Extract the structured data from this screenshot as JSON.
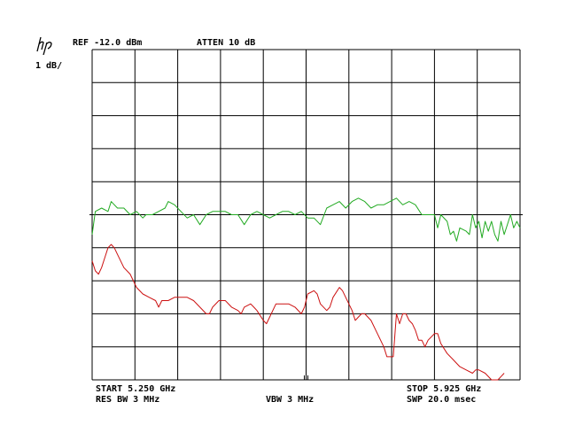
{
  "header": {
    "logo": "hp",
    "ref_level": "REF -12.0 dBm",
    "attenuation": "ATTEN 10 dB",
    "scale": "1 dB/"
  },
  "footer": {
    "start_freq": "START 5.250 GHz",
    "res_bw": "RES BW 3 MHz",
    "vbw": "VBW 3 MHz",
    "stop_freq": "STOP 5.925 GHz",
    "sweep_time": "SWP 20.0 msec"
  },
  "colors": {
    "grid": "#000000",
    "trace_green": "#22aa22",
    "trace_red": "#cc1111"
  },
  "chart_data": {
    "type": "line",
    "x_unit": "GHz",
    "y_unit": "dBm",
    "xlim": [
      5.25,
      5.925
    ],
    "ylim": [
      -22.0,
      -12.0
    ],
    "x_divisions": 10,
    "y_divisions": 10,
    "grid": true,
    "display_line_dbm": -17.0,
    "series": [
      {
        "color": "#22aa22",
        "points": [
          [
            5.25,
            -17.6
          ],
          [
            5.255,
            -16.9
          ],
          [
            5.265,
            -16.8
          ],
          [
            5.275,
            -16.9
          ],
          [
            5.28,
            -16.6
          ],
          [
            5.29,
            -16.8
          ],
          [
            5.3,
            -16.8
          ],
          [
            5.31,
            -17.0
          ],
          [
            5.32,
            -16.9
          ],
          [
            5.33,
            -17.1
          ],
          [
            5.335,
            -17.0
          ],
          [
            5.345,
            -17.0
          ],
          [
            5.355,
            -16.9
          ],
          [
            5.365,
            -16.8
          ],
          [
            5.37,
            -16.6
          ],
          [
            5.38,
            -16.7
          ],
          [
            5.39,
            -16.9
          ],
          [
            5.4,
            -17.1
          ],
          [
            5.41,
            -17.0
          ],
          [
            5.42,
            -17.3
          ],
          [
            5.43,
            -17.0
          ],
          [
            5.44,
            -16.9
          ],
          [
            5.45,
            -16.9
          ],
          [
            5.46,
            -16.9
          ],
          [
            5.47,
            -17.0
          ],
          [
            5.48,
            -17.0
          ],
          [
            5.49,
            -17.3
          ],
          [
            5.5,
            -17.0
          ],
          [
            5.51,
            -16.9
          ],
          [
            5.52,
            -17.0
          ],
          [
            5.53,
            -17.1
          ],
          [
            5.54,
            -17.0
          ],
          [
            5.55,
            -16.9
          ],
          [
            5.56,
            -16.9
          ],
          [
            5.57,
            -17.0
          ],
          [
            5.58,
            -16.9
          ],
          [
            5.59,
            -17.1
          ],
          [
            5.6,
            -17.1
          ],
          [
            5.61,
            -17.3
          ],
          [
            5.62,
            -16.8
          ],
          [
            5.63,
            -16.7
          ],
          [
            5.64,
            -16.6
          ],
          [
            5.65,
            -16.8
          ],
          [
            5.66,
            -16.6
          ],
          [
            5.67,
            -16.5
          ],
          [
            5.68,
            -16.6
          ],
          [
            5.69,
            -16.8
          ],
          [
            5.7,
            -16.7
          ],
          [
            5.71,
            -16.7
          ],
          [
            5.72,
            -16.6
          ],
          [
            5.73,
            -16.5
          ],
          [
            5.74,
            -16.7
          ],
          [
            5.75,
            -16.6
          ],
          [
            5.76,
            -16.7
          ],
          [
            5.77,
            -17.0
          ],
          [
            5.78,
            -17.0
          ],
          [
            5.79,
            -17.0
          ],
          [
            5.795,
            -17.4
          ],
          [
            5.8,
            -17.0
          ],
          [
            5.81,
            -17.2
          ],
          [
            5.815,
            -17.6
          ],
          [
            5.82,
            -17.5
          ],
          [
            5.825,
            -17.8
          ],
          [
            5.83,
            -17.4
          ],
          [
            5.84,
            -17.5
          ],
          [
            5.845,
            -17.6
          ],
          [
            5.85,
            -17.0
          ],
          [
            5.855,
            -17.4
          ],
          [
            5.86,
            -17.2
          ],
          [
            5.865,
            -17.7
          ],
          [
            5.87,
            -17.2
          ],
          [
            5.875,
            -17.5
          ],
          [
            5.88,
            -17.2
          ],
          [
            5.885,
            -17.6
          ],
          [
            5.89,
            -17.8
          ],
          [
            5.895,
            -17.2
          ],
          [
            5.9,
            -17.6
          ],
          [
            5.91,
            -17.0
          ],
          [
            5.915,
            -17.4
          ],
          [
            5.92,
            -17.2
          ],
          [
            5.925,
            -17.4
          ]
        ]
      },
      {
        "color": "#cc1111",
        "points": [
          [
            5.25,
            -18.4
          ],
          [
            5.255,
            -18.7
          ],
          [
            5.26,
            -18.8
          ],
          [
            5.265,
            -18.6
          ],
          [
            5.27,
            -18.3
          ],
          [
            5.275,
            -18.0
          ],
          [
            5.28,
            -17.9
          ],
          [
            5.285,
            -18.0
          ],
          [
            5.29,
            -18.2
          ],
          [
            5.3,
            -18.6
          ],
          [
            5.31,
            -18.8
          ],
          [
            5.32,
            -19.2
          ],
          [
            5.33,
            -19.4
          ],
          [
            5.34,
            -19.5
          ],
          [
            5.35,
            -19.6
          ],
          [
            5.355,
            -19.8
          ],
          [
            5.36,
            -19.6
          ],
          [
            5.37,
            -19.6
          ],
          [
            5.38,
            -19.5
          ],
          [
            5.39,
            -19.5
          ],
          [
            5.4,
            -19.5
          ],
          [
            5.41,
            -19.6
          ],
          [
            5.42,
            -19.8
          ],
          [
            5.43,
            -20.0
          ],
          [
            5.435,
            -20.0
          ],
          [
            5.44,
            -19.8
          ],
          [
            5.45,
            -19.6
          ],
          [
            5.46,
            -19.6
          ],
          [
            5.47,
            -19.8
          ],
          [
            5.48,
            -19.9
          ],
          [
            5.485,
            -20.0
          ],
          [
            5.49,
            -19.8
          ],
          [
            5.5,
            -19.7
          ],
          [
            5.505,
            -19.8
          ],
          [
            5.51,
            -19.9
          ],
          [
            5.52,
            -20.2
          ],
          [
            5.525,
            -20.3
          ],
          [
            5.53,
            -20.1
          ],
          [
            5.54,
            -19.7
          ],
          [
            5.55,
            -19.7
          ],
          [
            5.56,
            -19.7
          ],
          [
            5.57,
            -19.8
          ],
          [
            5.58,
            -20.0
          ],
          [
            5.585,
            -19.8
          ],
          [
            5.59,
            -19.4
          ],
          [
            5.6,
            -19.3
          ],
          [
            5.605,
            -19.4
          ],
          [
            5.61,
            -19.7
          ],
          [
            5.62,
            -19.9
          ],
          [
            5.625,
            -19.8
          ],
          [
            5.63,
            -19.5
          ],
          [
            5.64,
            -19.2
          ],
          [
            5.645,
            -19.3
          ],
          [
            5.65,
            -19.5
          ],
          [
            5.66,
            -19.9
          ],
          [
            5.665,
            -20.2
          ],
          [
            5.67,
            -20.1
          ],
          [
            5.675,
            -20.0
          ],
          [
            5.68,
            -20.0
          ],
          [
            5.69,
            -20.2
          ],
          [
            5.7,
            -20.6
          ],
          [
            5.71,
            -21.0
          ],
          [
            5.715,
            -21.3
          ],
          [
            5.72,
            -21.3
          ],
          [
            5.725,
            -21.3
          ],
          [
            5.73,
            -20.0
          ],
          [
            5.735,
            -20.3
          ],
          [
            5.74,
            -20.0
          ],
          [
            5.745,
            -20.0
          ],
          [
            5.75,
            -20.2
          ],
          [
            5.755,
            -20.3
          ],
          [
            5.76,
            -20.5
          ],
          [
            5.765,
            -20.8
          ],
          [
            5.77,
            -20.8
          ],
          [
            5.775,
            -21.0
          ],
          [
            5.78,
            -20.8
          ],
          [
            5.79,
            -20.6
          ],
          [
            5.795,
            -20.6
          ],
          [
            5.8,
            -20.9
          ],
          [
            5.81,
            -21.2
          ],
          [
            5.82,
            -21.4
          ],
          [
            5.83,
            -21.6
          ],
          [
            5.84,
            -21.7
          ],
          [
            5.85,
            -21.8
          ],
          [
            5.855,
            -21.7
          ],
          [
            5.86,
            -21.7
          ],
          [
            5.87,
            -21.8
          ],
          [
            5.88,
            -22.0
          ],
          [
            5.89,
            -22.0
          ],
          [
            5.895,
            -21.9
          ],
          [
            5.9,
            -21.8
          ]
        ]
      }
    ]
  }
}
